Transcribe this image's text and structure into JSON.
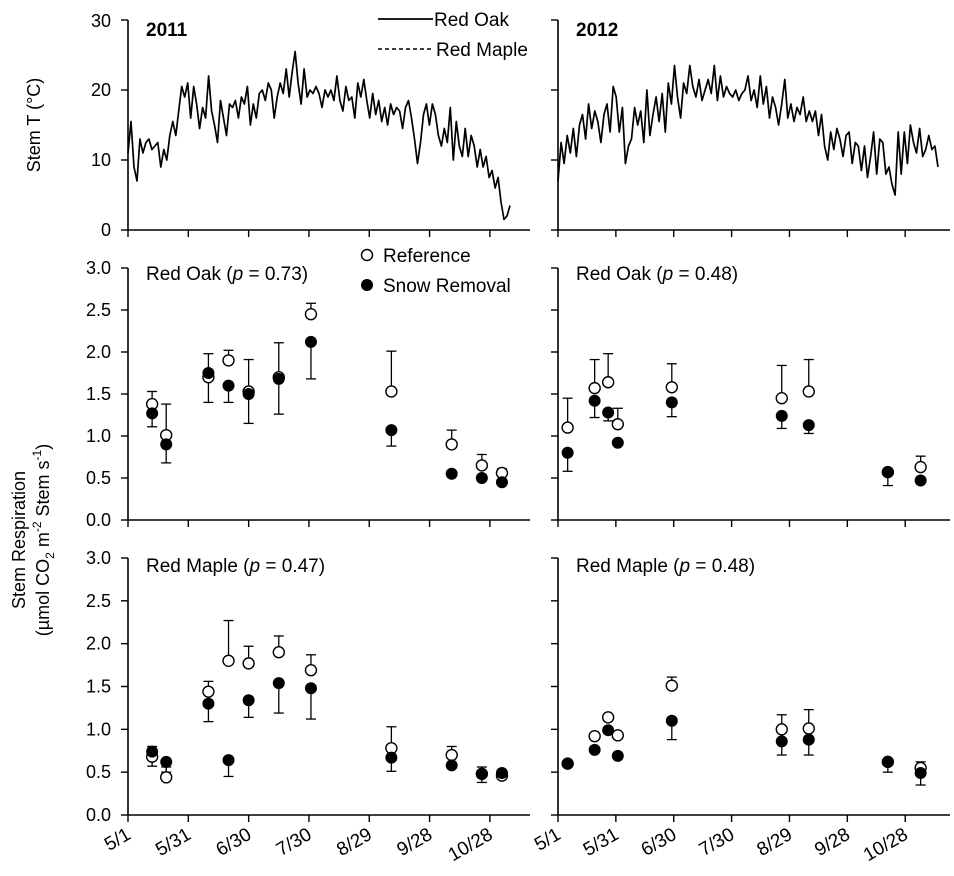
{
  "chart_data": [
    {
      "type": "line",
      "panel": "temperature-2011",
      "year_label": "2011",
      "ylabel": "Stem T  (°C)",
      "ylim": [
        0,
        30
      ],
      "yticks": [
        "0",
        "10",
        "20",
        "30"
      ],
      "legend": [
        {
          "name": "Red Oak",
          "style": "solid"
        },
        {
          "name": "Red Maple",
          "style": "dashed"
        }
      ],
      "series": [
        {
          "name": "Red Oak",
          "x_range": [
            "5/1",
            "11/7"
          ],
          "values": [
            11.0,
            15.5,
            9.0,
            7.0,
            13.0,
            11.0,
            12.5,
            13.0,
            11.5,
            12.0,
            12.5,
            9.0,
            11.5,
            10.0,
            13.5,
            15.5,
            13.5,
            17.0,
            20.5,
            19.0,
            21.0,
            16.0,
            20.5,
            18.0,
            14.5,
            17.5,
            16.0,
            22.0,
            17.0,
            15.0,
            12.5,
            18.5,
            16.0,
            13.5,
            18.0,
            17.5,
            18.5,
            16.0,
            19.0,
            18.0,
            20.5,
            15.0,
            18.0,
            16.0,
            19.5,
            20.0,
            18.5,
            21.0,
            20.0,
            16.0,
            19.0,
            21.0,
            19.5,
            23.0,
            19.0,
            22.5,
            25.5,
            21.0,
            18.0,
            23.0,
            19.0,
            20.0,
            19.5,
            20.5,
            19.5,
            17.5,
            20.0,
            19.0,
            20.0,
            18.5,
            22.0,
            18.5,
            17.0,
            20.5,
            18.5,
            19.0,
            16.0,
            21.0,
            19.0,
            21.5,
            18.5,
            16.0,
            19.5,
            16.5,
            18.5,
            15.5,
            17.5,
            15.0,
            18.0,
            16.5,
            17.5,
            17.0,
            14.5,
            17.5,
            18.5,
            16.0,
            13.0,
            9.5,
            12.5,
            16.5,
            18.0,
            15.0,
            18.0,
            16.5,
            13.5,
            12.0,
            14.5,
            12.5,
            17.5,
            10.0,
            15.5,
            12.0,
            10.5,
            14.5,
            10.5,
            13.5,
            12.0,
            9.0,
            11.5,
            9.0,
            10.5,
            7.5,
            8.5,
            6.0,
            7.5,
            4.0,
            1.5,
            2.0,
            3.5
          ]
        }
      ]
    },
    {
      "type": "line",
      "panel": "temperature-2012",
      "year_label": "2012",
      "ylim": [
        0,
        30
      ],
      "series": [
        {
          "name": "Red Oak",
          "x_range": [
            "5/1",
            "11/14"
          ],
          "values": [
            7.0,
            12.5,
            9.5,
            13.5,
            11.0,
            14.5,
            10.5,
            15.0,
            16.5,
            13.0,
            18.0,
            14.5,
            17.0,
            15.5,
            12.5,
            16.5,
            18.0,
            14.0,
            20.5,
            19.0,
            14.0,
            17.5,
            9.5,
            12.0,
            13.0,
            17.5,
            15.0,
            17.0,
            12.5,
            20.0,
            13.5,
            16.5,
            19.0,
            15.5,
            19.5,
            14.0,
            21.0,
            18.0,
            23.5,
            19.0,
            16.0,
            21.0,
            19.5,
            23.5,
            20.5,
            19.0,
            21.5,
            18.5,
            20.0,
            21.5,
            19.5,
            23.5,
            18.5,
            22.0,
            19.0,
            20.5,
            19.5,
            19.0,
            20.0,
            18.5,
            19.5,
            20.0,
            22.0,
            18.5,
            20.0,
            17.5,
            22.0,
            18.0,
            20.5,
            16.0,
            19.0,
            17.5,
            15.0,
            18.0,
            21.5,
            16.0,
            18.0,
            15.5,
            17.5,
            16.5,
            19.0,
            15.5,
            17.0,
            15.5,
            17.0,
            13.5,
            16.5,
            12.0,
            10.0,
            14.0,
            11.5,
            14.5,
            13.0,
            10.5,
            13.5,
            14.0,
            9.5,
            12.5,
            12.0,
            8.5,
            12.0,
            7.5,
            10.5,
            14.0,
            8.0,
            13.0,
            12.5,
            8.0,
            9.0,
            6.5,
            5.0,
            14.0,
            8.0,
            14.0,
            9.5,
            15.0,
            12.5,
            11.0,
            14.5,
            10.5,
            11.5,
            13.5,
            11.5,
            12.0,
            9.0
          ]
        }
      ]
    },
    {
      "type": "scatter",
      "panel": "red-oak-2011",
      "panel_label": "Red Oak (p = 0.73)",
      "ylim": [
        0,
        3.0
      ],
      "yticks": [
        "0.0",
        "0.5",
        "1.0",
        "1.5",
        "2.0",
        "2.5",
        "3.0"
      ],
      "legend": [
        {
          "name": "Reference",
          "marker": "open-circle"
        },
        {
          "name": "Snow Removal",
          "marker": "filled-circle"
        }
      ],
      "dates": [
        "5/13",
        "5/20",
        "6/10",
        "6/20",
        "6/30",
        "7/15",
        "7/31",
        "9/9",
        "10/9",
        "10/24",
        "11/3"
      ],
      "series": [
        {
          "name": "Reference",
          "values": [
            1.38,
            1.01,
            1.7,
            1.9,
            1.53,
            1.7,
            2.45,
            1.53,
            0.9,
            0.65,
            0.56
          ],
          "err": [
            0.15,
            0.37,
            0.28,
            0.12,
            0.38,
            0.41,
            0.13,
            0.48,
            0.17,
            0.13,
            0.05
          ]
        },
        {
          "name": "Snow Removal",
          "values": [
            1.27,
            0.9,
            1.75,
            1.6,
            1.5,
            1.68,
            2.12,
            1.07,
            0.55,
            0.5,
            0.45
          ],
          "err": [
            0.16,
            0.22,
            0.35,
            0.2,
            0.35,
            0.42,
            0.44,
            0.19,
            0.0,
            0.0,
            0.0
          ]
        }
      ]
    },
    {
      "type": "scatter",
      "panel": "red-oak-2012",
      "panel_label": "Red Oak (p = 0.48)",
      "ylim": [
        0,
        3.0
      ],
      "dates": [
        "5/6",
        "5/20",
        "5/27",
        "6/1",
        "6/29",
        "8/25",
        "9/8",
        "10/19",
        "11/5"
      ],
      "series": [
        {
          "name": "Reference",
          "values": [
            1.1,
            1.57,
            1.64,
            1.14,
            1.58,
            1.45,
            1.53,
            0.57,
            0.63
          ],
          "err": [
            0.35,
            0.34,
            0.34,
            0.19,
            0.28,
            0.39,
            0.38,
            0.0,
            0.13
          ]
        },
        {
          "name": "Snow Removal",
          "values": [
            0.8,
            1.42,
            1.28,
            0.92,
            1.4,
            1.24,
            1.13,
            0.57,
            0.47
          ],
          "err": [
            0.22,
            0.2,
            0.1,
            0.0,
            0.17,
            0.15,
            0.1,
            0.16,
            0.0
          ]
        }
      ]
    },
    {
      "type": "scatter",
      "panel": "red-maple-2011",
      "panel_label": "Red Maple (p = 0.47)",
      "ylim": [
        0,
        3.0
      ],
      "yticks": [
        "0.0",
        "0.5",
        "1.0",
        "1.5",
        "2.0",
        "2.5",
        "3.0"
      ],
      "dates": [
        "5/13",
        "5/20",
        "6/10",
        "6/20",
        "6/30",
        "7/15",
        "7/31",
        "9/9",
        "10/9",
        "10/24",
        "11/3"
      ],
      "series": [
        {
          "name": "Reference",
          "values": [
            0.68,
            0.44,
            1.44,
            1.8,
            1.77,
            1.9,
            1.69,
            0.78,
            0.7,
            0.48,
            0.46
          ],
          "err": [
            0.12,
            0.12,
            0.12,
            0.47,
            0.2,
            0.19,
            0.18,
            0.25,
            0.1,
            0.08,
            0.05
          ]
        },
        {
          "name": "Snow Removal",
          "values": [
            0.74,
            0.62,
            1.3,
            0.64,
            1.34,
            1.54,
            1.48,
            0.67,
            0.58,
            0.48,
            0.49
          ],
          "err": [
            0.17,
            0.12,
            0.21,
            0.19,
            0.2,
            0.35,
            0.36,
            0.16,
            0.0,
            0.1,
            0.0
          ]
        }
      ]
    },
    {
      "type": "scatter",
      "panel": "red-maple-2012",
      "panel_label": "Red Maple (p = 0.48)",
      "ylim": [
        0,
        3.0
      ],
      "dates": [
        "5/6",
        "5/20",
        "5/27",
        "6/1",
        "6/29",
        "8/25",
        "9/8",
        "10/19",
        "11/5"
      ],
      "series": [
        {
          "name": "Reference",
          "values": [
            0.6,
            0.92,
            1.14,
            0.93,
            1.51,
            1.0,
            1.01,
            0.62,
            0.55
          ],
          "err": [
            0.0,
            0.0,
            0.0,
            0.0,
            0.1,
            0.17,
            0.22,
            0.0,
            0.07
          ]
        },
        {
          "name": "Snow Removal",
          "values": [
            0.6,
            0.76,
            0.99,
            0.69,
            1.1,
            0.86,
            0.88,
            0.62,
            0.49
          ],
          "err": [
            0.0,
            0.0,
            0.0,
            0.0,
            0.22,
            0.16,
            0.18,
            0.12,
            0.14
          ]
        }
      ]
    }
  ],
  "labels": {
    "resp_ylabel_line1": "Stem Respiration",
    "resp_ylabel_line2_parts": [
      "(µmol CO",
      "2",
      " m",
      "-2",
      " Stem s",
      "-1",
      ")"
    ],
    "panel_prefix_oak": "Red Oak (",
    "panel_prefix_maple": "Red Maple (",
    "p_symbol": "p",
    "p_oak_2011": " = 0.73)",
    "p_oak_2012": " = 0.48)",
    "p_maple_2011": " = 0.47)",
    "p_maple_2012": " = 0.48)"
  },
  "x_axis": {
    "ticks": [
      "5/1",
      "5/31",
      "6/30",
      "7/30",
      "8/29",
      "9/28",
      "10/28"
    ],
    "tick_dates_2011": [
      "5/1",
      "5/31",
      "6/30",
      "7/30",
      "8/29",
      "9/28",
      "10/28"
    ],
    "tick_dates_2012": [
      "5/1",
      "5/31",
      "6/30",
      "7/30",
      "8/29",
      "9/28",
      "10/28"
    ]
  }
}
